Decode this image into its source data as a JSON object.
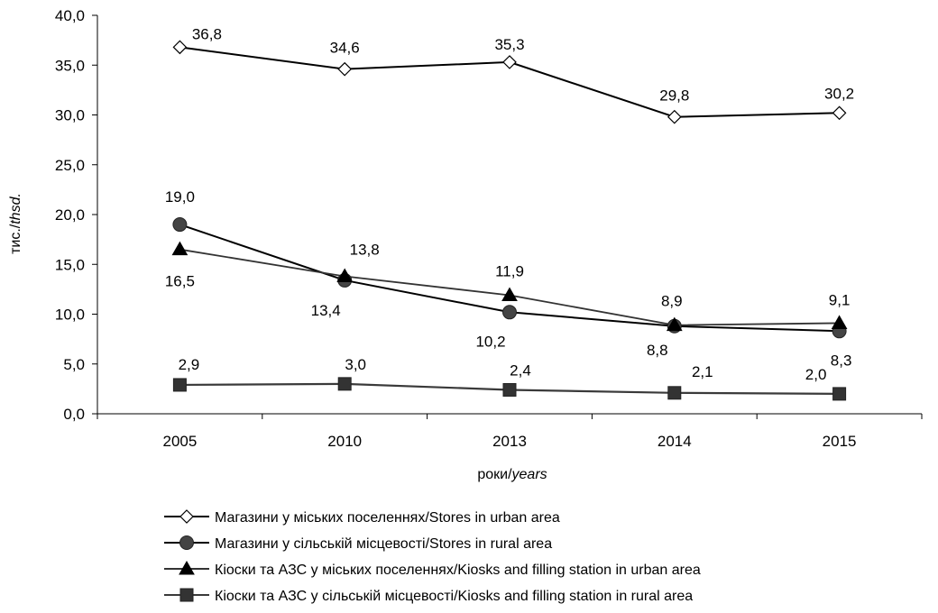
{
  "chart_data": {
    "type": "line",
    "categories": [
      "2005",
      "2010",
      "2013",
      "2014",
      "2015"
    ],
    "ylabel_main": "тис./",
    "ylabel_italic": "thsd.",
    "xlabel_main": "роки/",
    "xlabel_italic": "years",
    "ylim": [
      0,
      40
    ],
    "yticks": [
      "0,0",
      "5,0",
      "10,0",
      "15,0",
      "20,0",
      "25,0",
      "30,0",
      "35,0",
      "40,0"
    ],
    "grid": false,
    "legend_position": "bottom",
    "series": [
      {
        "name": "Магазини у міських поселеннях/Stores in urban area",
        "values": [
          36.8,
          34.6,
          35.3,
          29.8,
          30.2
        ],
        "labels": [
          "36,8",
          "34,6",
          "35,3",
          "29,8",
          "30,2"
        ],
        "marker": "diamond-open",
        "color": "#000000"
      },
      {
        "name": "Магазини у сільській місцевості/Stores in rural area",
        "values": [
          19.0,
          13.4,
          10.2,
          8.8,
          8.3
        ],
        "labels": [
          "19,0",
          "13,4",
          "10,2",
          "8,8",
          "8,3"
        ],
        "marker": "circle",
        "color": "#000000"
      },
      {
        "name": "Кіоски та АЗС у міських поселеннях/Kiosks and filling station in urban area",
        "values": [
          16.5,
          13.8,
          11.9,
          8.9,
          9.1
        ],
        "labels": [
          "16,5",
          "13,8",
          "11,9",
          "8,9",
          "9,1"
        ],
        "marker": "triangle",
        "color": "#333333"
      },
      {
        "name": "Кіоски та АЗС у сільській місцевості/Kiosks and filling station in rural area",
        "values": [
          2.9,
          3.0,
          2.4,
          2.1,
          2.0
        ],
        "labels": [
          "2,9",
          "3,0",
          "2,4",
          "2,1",
          "2,0"
        ],
        "marker": "square",
        "color": "#3a3a3a"
      }
    ]
  }
}
